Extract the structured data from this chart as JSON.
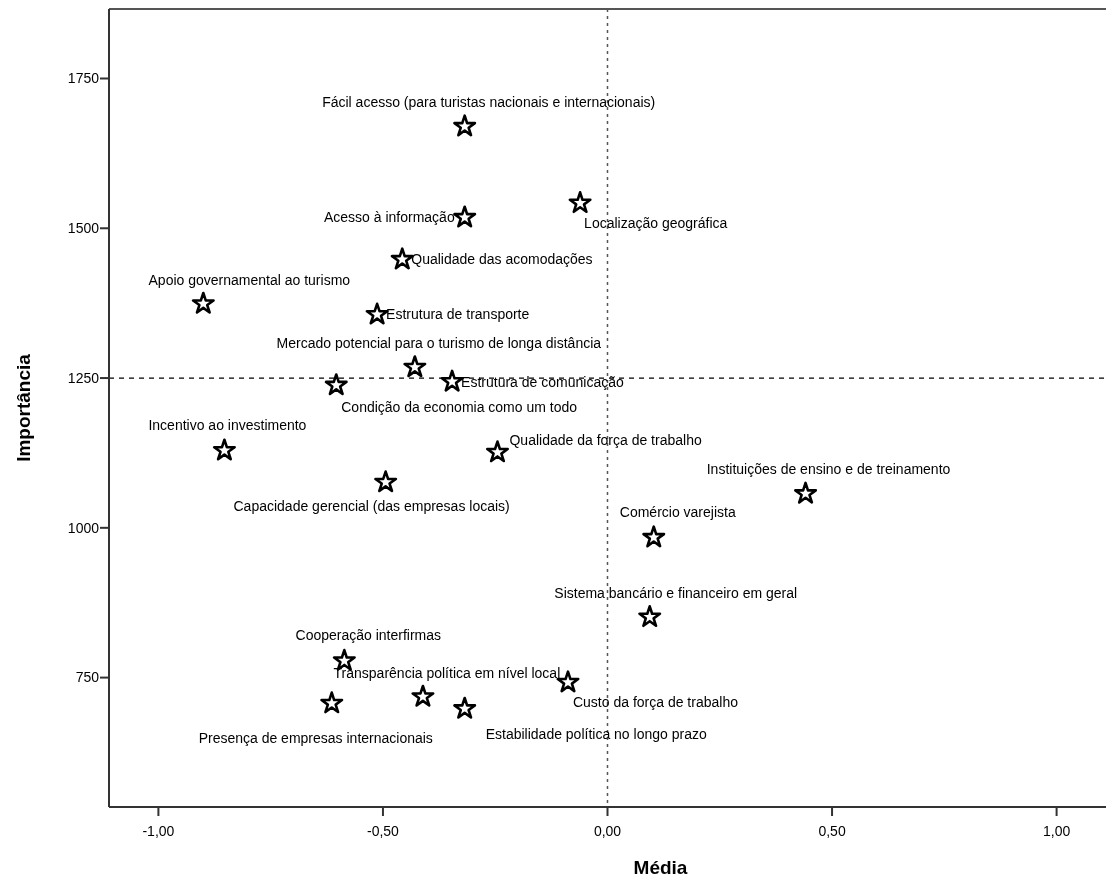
{
  "chart_data": {
    "type": "scatter",
    "xlabel": "Média",
    "ylabel": "Importância",
    "marker": "star",
    "xlim": [
      -1.11,
      1.11
    ],
    "ylim": [
      534,
      1866
    ],
    "xticks": [
      {
        "value": -1,
        "label": "-1,00"
      },
      {
        "value": -0.5,
        "label": "-0,50"
      },
      {
        "value": 0,
        "label": "0,00"
      },
      {
        "value": 0.5,
        "label": "0,50"
      },
      {
        "value": 1,
        "label": "1,00"
      }
    ],
    "yticks": [
      750,
      1000,
      1250,
      1500,
      1750
    ],
    "grid": false,
    "ref_lines": [
      {
        "axis": "x",
        "value": 0,
        "line_style": "dotted",
        "color": "#555555"
      },
      {
        "axis": "y",
        "value": 1250,
        "line_style": "dashed",
        "color": "#000000"
      }
    ],
    "series": [
      {
        "color": "#000000",
        "x": [
          -0.318,
          -0.318,
          -0.061,
          -0.457,
          -0.9,
          -0.513,
          -0.429,
          -0.346,
          -0.604,
          -0.853,
          -0.245,
          -0.494,
          0.441,
          0.103,
          0.094,
          -0.586,
          -0.411,
          -0.614,
          -0.318,
          -0.088
        ],
        "values": [
          1670,
          1518,
          1542,
          1448,
          1374,
          1356,
          1268,
          1244,
          1238,
          1129,
          1126,
          1076,
          1057,
          984,
          851,
          778,
          718,
          707,
          698,
          742
        ],
        "value_labels": [
          "Fácil acesso (para turistas nacionais e internacionais)",
          "Acesso à informação",
          "Localização geográfica",
          "Qualidade das acomodações",
          "Apoio governamental ao turismo",
          "Estrutura de transporte",
          "Mercado potencial para o turismo de longa distância",
          "Estrutura de comunicação",
          "Condição da economia como um todo",
          "Incentivo ao investimento",
          "Qualidade da força de trabalho",
          "Capacidade gerencial (das empresas locais)",
          "Instituições de ensino e de treinamento",
          "Comércio varejista",
          "Sistema bancário e financeiro em geral",
          "Cooperação interfirmas",
          "Transparência política em nível local",
          "Presença de empresas internacionais",
          "Estabilidade política no longo prazo",
          "Custo da força de trabalho"
        ]
      }
    ]
  }
}
